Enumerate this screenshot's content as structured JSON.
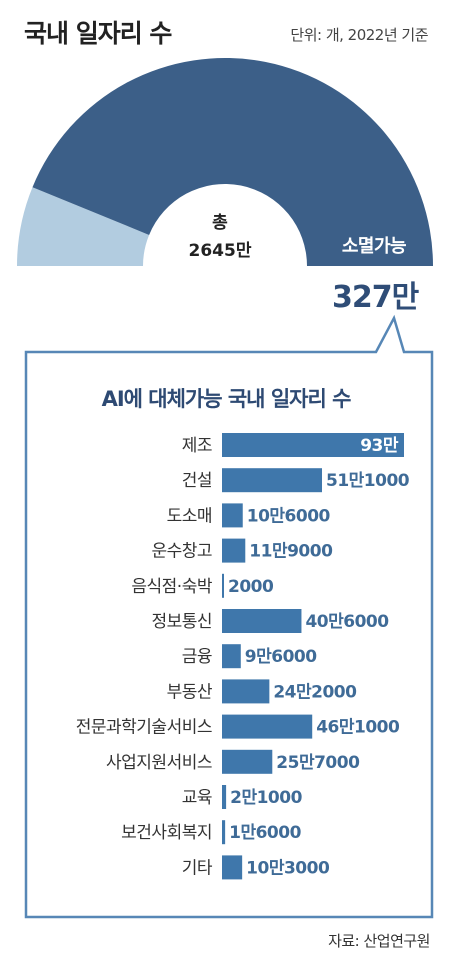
{
  "header": {
    "title": "국내 일자리 수",
    "unit": "단위: 개, 2022년 기준"
  },
  "colors": {
    "donut_total": "#b2cce0",
    "donut_vulnerable": "#3c5f88",
    "bar": "#3f77ab",
    "bar_text_on": "#ffffff",
    "bar_text_off": "#3f6b97",
    "callout_border": "#5787b6",
    "title_blue": "#2e4a73"
  },
  "donut": {
    "total_label": "총",
    "total_value": "2645만",
    "vulnerable_label": "소멸가능",
    "vulnerable_value": "327만",
    "total": 26450000,
    "vulnerable": 3270000
  },
  "box_title": "AI에 대체가능 국내 일자리 수",
  "source": "자료: 산업연구원",
  "chart_data": {
    "type": "bar",
    "orientation": "horizontal",
    "title": "AI에 대체가능 국내 일자리 수",
    "categories": [
      "제조",
      "건설",
      "도소매",
      "운수창고",
      "음식점·숙박",
      "정보통신",
      "금융",
      "부동산",
      "전문과학기술서비스",
      "사업지원서비스",
      "교육",
      "보건사회복지",
      "기타"
    ],
    "values": [
      930000,
      511000,
      106000,
      119000,
      2000,
      406000,
      96000,
      242000,
      461000,
      257000,
      21000,
      16000,
      103000
    ],
    "value_labels": [
      "93만",
      "51만1000",
      "10만6000",
      "11만9000",
      "2000",
      "40만6000",
      "9만6000",
      "24만2000",
      "46만1000",
      "25만7000",
      "2만1000",
      "1만6000",
      "10만3000"
    ],
    "unit": "개"
  }
}
